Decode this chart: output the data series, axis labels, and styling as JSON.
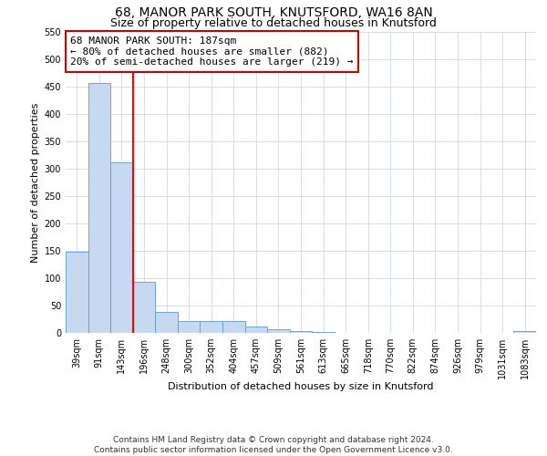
{
  "title_line1": "68, MANOR PARK SOUTH, KNUTSFORD, WA16 8AN",
  "title_line2": "Size of property relative to detached houses in Knutsford",
  "xlabel": "Distribution of detached houses by size in Knutsford",
  "ylabel": "Number of detached properties",
  "footer_line1": "Contains HM Land Registry data © Crown copyright and database right 2024.",
  "footer_line2": "Contains public sector information licensed under the Open Government Licence v3.0.",
  "annotation_line1": "68 MANOR PARK SOUTH: 187sqm",
  "annotation_line2": "← 80% of detached houses are smaller (882)",
  "annotation_line3": "20% of semi-detached houses are larger (219) →",
  "bar_labels": [
    "39sqm",
    "91sqm",
    "143sqm",
    "196sqm",
    "248sqm",
    "300sqm",
    "352sqm",
    "404sqm",
    "457sqm",
    "509sqm",
    "561sqm",
    "613sqm",
    "665sqm",
    "718sqm",
    "770sqm",
    "822sqm",
    "874sqm",
    "926sqm",
    "979sqm",
    "1031sqm",
    "1083sqm"
  ],
  "bar_values": [
    148,
    456,
    311,
    93,
    38,
    21,
    21,
    21,
    12,
    6,
    3,
    1,
    0,
    0,
    0,
    0,
    0,
    0,
    0,
    0,
    3
  ],
  "bar_color": "#c6d9f0",
  "bar_edge_color": "#5b9bd5",
  "red_line_x": 2.5,
  "ylim": [
    0,
    550
  ],
  "yticks": [
    0,
    50,
    100,
    150,
    200,
    250,
    300,
    350,
    400,
    450,
    500,
    550
  ],
  "bg_color": "#ffffff",
  "grid_color": "#d0d8e8",
  "annotation_box_color": "#ffffff",
  "annotation_box_edge": "#cc0000",
  "title1_fontsize": 10,
  "title2_fontsize": 9,
  "axis_label_fontsize": 8,
  "tick_fontsize": 7,
  "annotation_fontsize": 8,
  "footer_fontsize": 6.5
}
